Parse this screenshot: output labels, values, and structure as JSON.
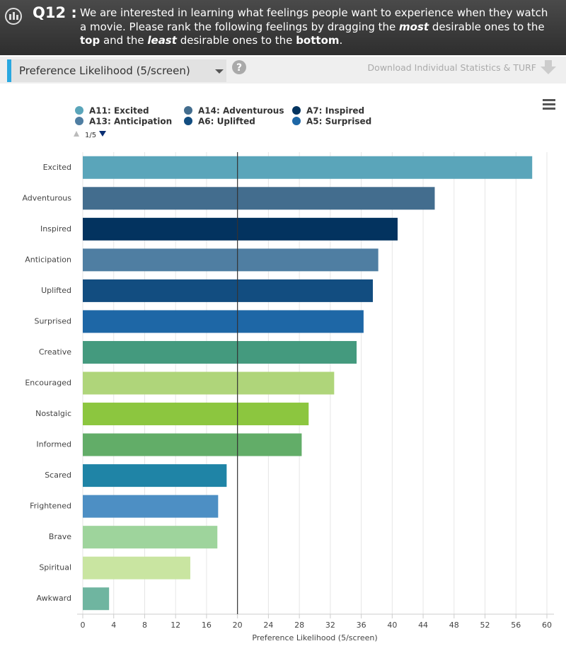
{
  "header": {
    "number": "Q12 :",
    "question": [
      {
        "text": "We are interested in learning what feelings people want to experience when they watch a movie. Please rank the following feelings by dragging the "
      },
      {
        "text": "most",
        "style": "bold-italic"
      },
      {
        "text": " desirable ones to the "
      },
      {
        "text": "top",
        "style": "bold"
      },
      {
        "text": " and the "
      },
      {
        "text": "least",
        "style": "bold-italic"
      },
      {
        "text": " desirable ones to the "
      },
      {
        "text": "bottom",
        "style": "bold"
      },
      {
        "text": "."
      }
    ]
  },
  "toolbar": {
    "dropdown": "Preference Likelihood (5/screen)",
    "download": "Download Individual Statistics & TURF"
  },
  "chart_data": {
    "type": "hbar",
    "legend": [
      {
        "name": "A11: Excited",
        "color": "#5aa5ba"
      },
      {
        "name": "A14: Adventurous",
        "color": "#436d8e"
      },
      {
        "name": "A7: Inspired",
        "color": "#03335f"
      },
      {
        "name": "A13: Anticipation",
        "color": "#4f7ea2"
      },
      {
        "name": "A6: Uplifted",
        "color": "#124d80"
      },
      {
        "name": "A5: Surprised",
        "color": "#1e67a6"
      }
    ],
    "legend_page": "1/5",
    "categories": [
      "Excited",
      "Adventurous",
      "Inspired",
      "Anticipation",
      "Uplifted",
      "Surprised",
      "Creative",
      "Encouraged",
      "Nostalgic",
      "Informed",
      "Scared",
      "Frightened",
      "Brave",
      "Spiritual",
      "Awkward"
    ],
    "values": [
      58.1,
      45.5,
      40.7,
      38.2,
      37.5,
      36.3,
      35.4,
      32.5,
      29.2,
      28.3,
      18.6,
      17.5,
      17.4,
      13.9,
      3.4
    ],
    "colors": [
      "#5aa5ba",
      "#436d8e",
      "#03335f",
      "#4f7ea2",
      "#124d80",
      "#1e67a6",
      "#449a7e",
      "#afd57a",
      "#8cc63f",
      "#62ad68",
      "#1f84a6",
      "#4d8fc4",
      "#9ed49c",
      "#c9e5a1",
      "#6fb5a0"
    ],
    "reference_line": 20,
    "xlim": [
      0,
      60
    ],
    "xticks": [
      0,
      4,
      8,
      12,
      16,
      20,
      24,
      28,
      32,
      36,
      40,
      44,
      48,
      52,
      56,
      60
    ],
    "x_label": "Preference Likelihood (5/screen)",
    "grid": true
  }
}
